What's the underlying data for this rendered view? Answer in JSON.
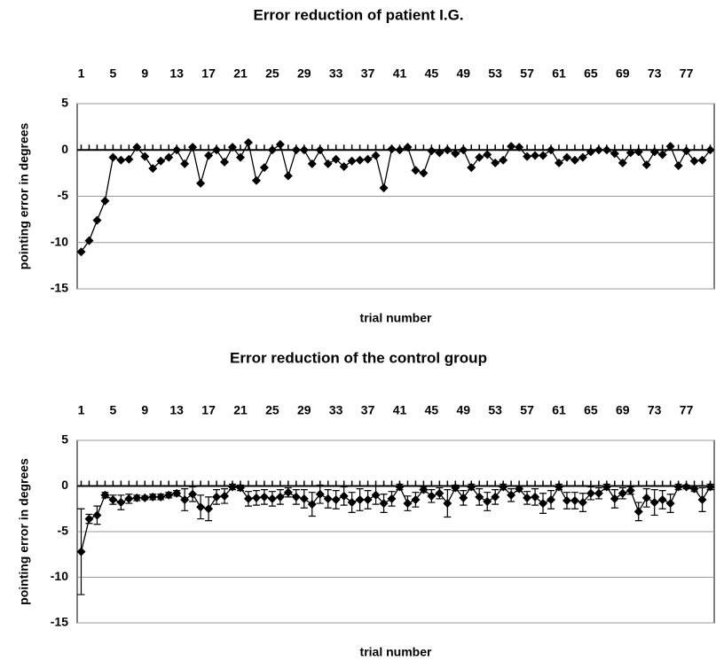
{
  "chart_data": [
    {
      "type": "line",
      "title": "Error reduction of patient I.G.",
      "x_label": "trial number",
      "y_label": "pointing error in degrees",
      "x": [
        1,
        2,
        3,
        4,
        5,
        6,
        7,
        8,
        9,
        10,
        11,
        12,
        13,
        14,
        15,
        16,
        17,
        18,
        19,
        20,
        21,
        22,
        23,
        24,
        25,
        26,
        27,
        28,
        29,
        30,
        31,
        32,
        33,
        34,
        35,
        36,
        37,
        38,
        39,
        40,
        41,
        42,
        43,
        44,
        45,
        46,
        47,
        48,
        49,
        50,
        51,
        52,
        53,
        54,
        55,
        56,
        57,
        58,
        59,
        60,
        61,
        62,
        63,
        64,
        65,
        66,
        67,
        68,
        69,
        70,
        71,
        72,
        73,
        74,
        75,
        76,
        77,
        78,
        79,
        80
      ],
      "xlim": [
        0.5,
        80.5
      ],
      "xticks": [
        1,
        5,
        9,
        13,
        17,
        21,
        25,
        29,
        33,
        37,
        41,
        45,
        49,
        53,
        57,
        61,
        65,
        69,
        73,
        77
      ],
      "ylim": [
        -15,
        5
      ],
      "yticks": [
        5,
        0,
        -5,
        -10,
        -15
      ],
      "grid": true,
      "marker": "diamond",
      "series": [
        {
          "color": "#000000",
          "values": [
            -11,
            -9.8,
            -7.6,
            -5.5,
            -0.8,
            -1.1,
            -1,
            0.3,
            -0.7,
            -2,
            -1.2,
            -0.8,
            0,
            -1.5,
            0.3,
            -3.6,
            -0.6,
            0,
            -1.3,
            0.3,
            -0.8,
            0.8,
            -3.3,
            -1.9,
            0,
            0.6,
            -2.8,
            0,
            0,
            -1.5,
            0,
            -1.5,
            -1,
            -1.8,
            -1.2,
            -1.1,
            -1,
            -0.6,
            -4.1,
            0.1,
            0,
            0.3,
            -2.2,
            -2.5,
            -0.1,
            -0.3,
            0,
            -0.4,
            0,
            -1.9,
            -0.8,
            -0.5,
            -1.4,
            -1.1,
            0.4,
            0.3,
            -0.7,
            -0.6,
            -0.6,
            0,
            -1.4,
            -0.8,
            -1.1,
            -0.8,
            -0.2,
            0,
            0,
            -0.4,
            -1.4,
            -0.3,
            -0.2,
            -1.6,
            -0.2,
            -0.5,
            0.4,
            -1.7,
            -0.1,
            -1.2,
            -1.1,
            0
          ]
        }
      ]
    },
    {
      "type": "line",
      "title": "Error reduction of the control group",
      "x_label": "trial number",
      "y_label": "pointing error in degrees",
      "x": [
        1,
        2,
        3,
        4,
        5,
        6,
        7,
        8,
        9,
        10,
        11,
        12,
        13,
        14,
        15,
        16,
        17,
        18,
        19,
        20,
        21,
        22,
        23,
        24,
        25,
        26,
        27,
        28,
        29,
        30,
        31,
        32,
        33,
        34,
        35,
        36,
        37,
        38,
        39,
        40,
        41,
        42,
        43,
        44,
        45,
        46,
        47,
        48,
        49,
        50,
        51,
        52,
        53,
        54,
        55,
        56,
        57,
        58,
        59,
        60,
        61,
        62,
        63,
        64,
        65,
        66,
        67,
        68,
        69,
        70,
        71,
        72,
        73,
        74,
        75,
        76,
        77,
        78,
        79,
        80
      ],
      "xlim": [
        0.5,
        80.5
      ],
      "xticks": [
        1,
        5,
        9,
        13,
        17,
        21,
        25,
        29,
        33,
        37,
        41,
        45,
        49,
        53,
        57,
        61,
        65,
        69,
        73,
        77
      ],
      "ylim": [
        -15,
        5
      ],
      "yticks": [
        5,
        0,
        -5,
        -10,
        -15
      ],
      "grid": true,
      "marker": "diamond",
      "series": [
        {
          "color": "#000000",
          "values": [
            -7.2,
            -3.6,
            -3.2,
            -1,
            -1.5,
            -1.8,
            -1.4,
            -1.3,
            -1.3,
            -1.2,
            -1.2,
            -1,
            -0.8,
            -1.5,
            -0.9,
            -2.3,
            -2.5,
            -1.2,
            -1.1,
            -0.1,
            -0.2,
            -1.4,
            -1.3,
            -1.2,
            -1.4,
            -1.2,
            -0.7,
            -1.2,
            -1.4,
            -2,
            -0.9,
            -1.4,
            -1.5,
            -1.1,
            -1.8,
            -1.5,
            -1.5,
            -1,
            -1.9,
            -1.4,
            -0.1,
            -1.9,
            -1.5,
            -0.4,
            -1.1,
            -0.8,
            -1.9,
            -0.2,
            -1.3,
            -0.1,
            -1.2,
            -1.7,
            -1.2,
            -0.1,
            -1,
            -0.3,
            -1.3,
            -1.2,
            -1.9,
            -1.5,
            -0.1,
            -1.6,
            -1.6,
            -1.8,
            -0.8,
            -0.8,
            -0.1,
            -1.4,
            -0.8,
            -0.5,
            -2.8,
            -1.3,
            -1.8,
            -1.5,
            -1.9,
            -0.1,
            -0.1,
            -0.3,
            -1.5,
            -0.1
          ],
          "errors": [
            4.7,
            0.5,
            1,
            0.3,
            0.5,
            0.8,
            0.5,
            0.3,
            0.2,
            0.3,
            0.3,
            0.3,
            0.3,
            1.2,
            0.8,
            1.3,
            1.3,
            0.8,
            0.8,
            0.3,
            0.3,
            0.8,
            0.8,
            0.8,
            0.8,
            0.8,
            0.5,
            0.8,
            1,
            1.3,
            1,
            1,
            1,
            1,
            1.1,
            1.2,
            1,
            1,
            1,
            0.8,
            0.3,
            0.8,
            0.8,
            0.3,
            0.7,
            0.6,
            1.5,
            0.3,
            0.8,
            0.3,
            0.9,
            1,
            0.8,
            0.3,
            0.7,
            0.3,
            0.7,
            0.9,
            1.1,
            1,
            0.3,
            0.9,
            0.9,
            1,
            0.7,
            0.6,
            0.3,
            1,
            0.6,
            0.4,
            1,
            1,
            1.4,
            1,
            1,
            0.3,
            0.2,
            0.3,
            1.3,
            0.3
          ]
        }
      ]
    }
  ]
}
